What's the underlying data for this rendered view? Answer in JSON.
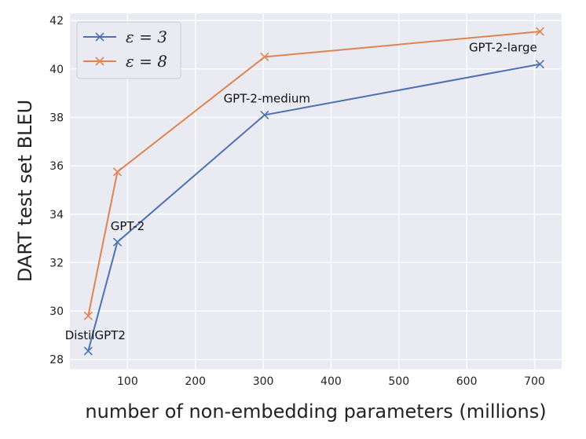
{
  "chart_data": {
    "type": "line",
    "title": "",
    "xlabel": "number of non-embedding parameters (millions)",
    "ylabel": "DART test set BLEU",
    "xlim": [
      15,
      740
    ],
    "ylim": [
      27.6,
      42.3
    ],
    "xticks": [
      100,
      200,
      300,
      400,
      500,
      600,
      700
    ],
    "yticks": [
      28,
      30,
      32,
      34,
      36,
      38,
      40,
      42
    ],
    "grid": true,
    "legend_position": "top-left",
    "series": [
      {
        "name": "ε = 3",
        "color": "#4c72b0",
        "marker": "x",
        "x": [
          42,
          85,
          302,
          708
        ],
        "y": [
          28.35,
          32.85,
          38.1,
          40.2
        ]
      },
      {
        "name": "ε = 8",
        "color": "#dd8452",
        "marker": "x",
        "x": [
          42,
          85,
          302,
          708
        ],
        "y": [
          29.8,
          35.75,
          40.5,
          41.55
        ]
      }
    ],
    "annotations": [
      {
        "text": "DistilGPT2",
        "x": 42,
        "y": 28.35
      },
      {
        "text": "GPT-2",
        "x": 85,
        "y": 32.85
      },
      {
        "text": "GPT-2-medium",
        "x": 302,
        "y": 38.1
      },
      {
        "text": "GPT-2-large",
        "x": 708,
        "y": 40.2
      }
    ]
  }
}
